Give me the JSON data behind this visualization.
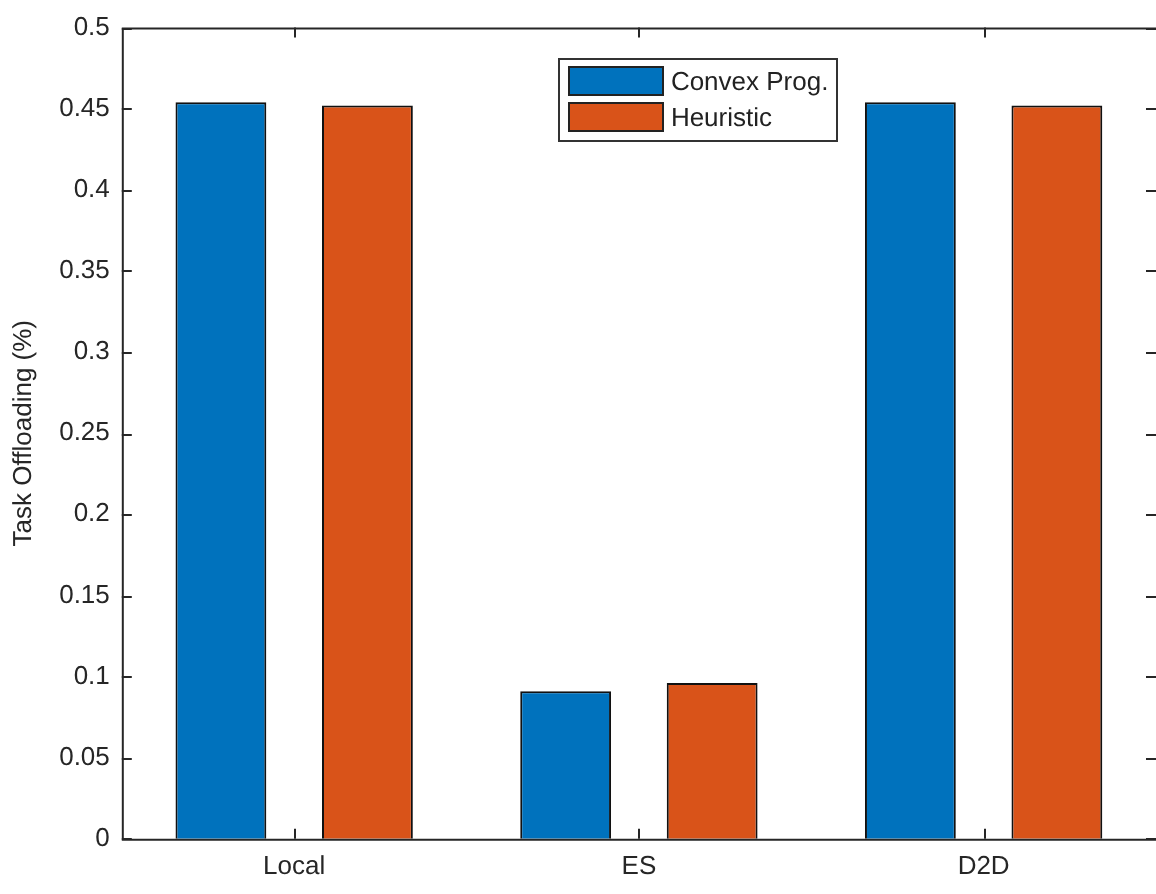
{
  "chart_data": {
    "type": "bar",
    "ylabel": "Task Offloading (%)",
    "categories": [
      "Local",
      "ES",
      "D2D"
    ],
    "series": [
      {
        "name": "Convex Prog.",
        "color": "#0072bd",
        "values": [
          0.454,
          0.091,
          0.454
        ]
      },
      {
        "name": "Heuristic",
        "color": "#d95319",
        "values": [
          0.452,
          0.096,
          0.452
        ]
      }
    ],
    "ylim": [
      0,
      0.5
    ],
    "yticks": [
      0,
      0.05,
      0.1,
      0.15,
      0.2,
      0.25,
      0.3,
      0.35,
      0.4,
      0.45,
      0.5
    ],
    "grid": false,
    "legend": "top"
  }
}
